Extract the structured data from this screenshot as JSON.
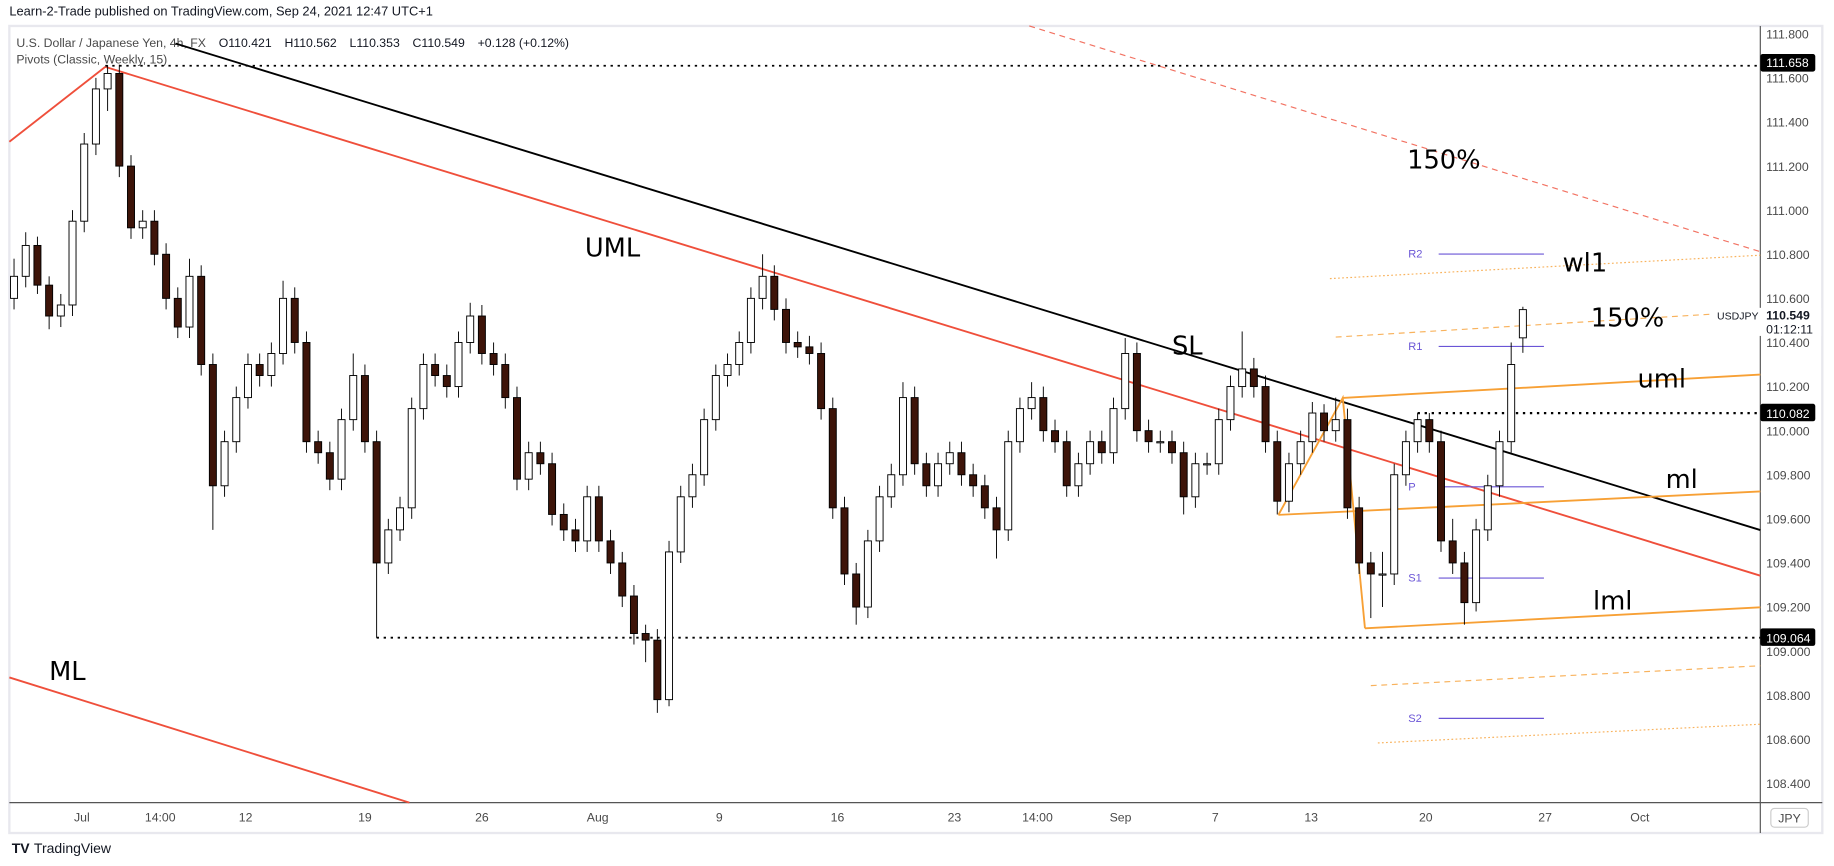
{
  "header": {
    "published": "Learn-2-Trade published on TradingView.com, Sep 24, 2021 12:47 UTC+1",
    "symbol_name": "U.S. Dollar / Japanese Yen, 4h, FX",
    "open": "O110.421",
    "high": "H110.562",
    "low": "L110.353",
    "close": "C110.549",
    "change": "+0.128 (+0.12%)",
    "indicator": "Pivots (Classic, Weekly, 15)"
  },
  "footer": {
    "logo_text": "TradingView"
  },
  "price_axis": {
    "currency": "JPY",
    "ticks": [
      "111.800",
      "111.600",
      "111.400",
      "111.200",
      "111.000",
      "110.800",
      "110.600",
      "110.400",
      "110.200",
      "110.000",
      "109.800",
      "109.600",
      "109.400",
      "109.200",
      "109.000",
      "108.800",
      "108.600",
      "108.400"
    ],
    "current_price": "110.549",
    "countdown": "01:12:11",
    "symbol_tag": "USDJPY",
    "level_labels": [
      "111.658",
      "110.082",
      "109.064"
    ]
  },
  "annotations": {
    "upper_150": "150%",
    "uml_big": "UML",
    "wl1": "wl1",
    "right_150": "150%",
    "sl": "SL",
    "uml": "uml",
    "ml": "ml",
    "lml": "lml",
    "ml_big": "ML"
  },
  "pivots": {
    "r2": "R2",
    "r1": "R1",
    "p": "P",
    "s1": "S1",
    "s2": "S2"
  },
  "colors": {
    "up_candle": "#ffffff",
    "down_candle": "#3d1409",
    "red_line": "#ef4f3b",
    "orange_line": "#f7a035",
    "pivot": "#6a55d6",
    "trend_line": "#000000"
  },
  "chart_data": {
    "type": "candlestick",
    "title": "U.S. Dollar / Japanese Yen, 4h, FX",
    "ylim": [
      108.3,
      111.9
    ],
    "grid": false,
    "x_tick_labels": [
      "Jul",
      "14:00",
      "12",
      "19",
      "26",
      "Aug",
      "9",
      "16",
      "23",
      "14:00",
      "Sep",
      "7",
      "13",
      "20",
      "27",
      "Oct"
    ],
    "horizontal_levels": [
      111.658,
      110.082,
      109.064
    ],
    "pivot_levels": {
      "R2": 110.8,
      "R1": 110.38,
      "P": 109.745,
      "S1": 109.33,
      "S2": 108.7
    },
    "candles": [
      [
        110.6,
        110.78,
        110.55,
        110.7
      ],
      [
        110.7,
        110.9,
        110.65,
        110.84
      ],
      [
        110.84,
        110.88,
        110.62,
        110.66
      ],
      [
        110.66,
        110.7,
        110.46,
        110.52
      ],
      [
        110.52,
        110.62,
        110.47,
        110.57
      ],
      [
        110.57,
        111.0,
        110.52,
        110.95
      ],
      [
        110.95,
        111.35,
        110.9,
        111.3
      ],
      [
        111.3,
        111.6,
        111.25,
        111.55
      ],
      [
        111.55,
        111.658,
        111.45,
        111.62
      ],
      [
        111.62,
        111.66,
        111.15,
        111.2
      ],
      [
        111.2,
        111.25,
        110.87,
        110.92
      ],
      [
        110.92,
        111.0,
        110.87,
        110.95
      ],
      [
        110.95,
        111.0,
        110.75,
        110.8
      ],
      [
        110.8,
        110.85,
        110.55,
        110.6
      ],
      [
        110.6,
        110.65,
        110.42,
        110.47
      ],
      [
        110.47,
        110.78,
        110.42,
        110.7
      ],
      [
        110.7,
        110.75,
        110.25,
        110.3
      ],
      [
        110.3,
        110.35,
        109.55,
        109.75
      ],
      [
        109.75,
        110.0,
        109.7,
        109.95
      ],
      [
        109.95,
        110.2,
        109.9,
        110.15
      ],
      [
        110.15,
        110.35,
        110.1,
        110.3
      ],
      [
        110.3,
        110.35,
        110.2,
        110.25
      ],
      [
        110.25,
        110.4,
        110.2,
        110.35
      ],
      [
        110.35,
        110.68,
        110.3,
        110.6
      ],
      [
        110.6,
        110.65,
        110.35,
        110.4
      ],
      [
        110.4,
        110.45,
        109.9,
        109.95
      ],
      [
        109.95,
        110.0,
        109.85,
        109.9
      ],
      [
        109.9,
        109.95,
        109.73,
        109.78
      ],
      [
        109.78,
        110.1,
        109.73,
        110.05
      ],
      [
        110.05,
        110.35,
        110.0,
        110.25
      ],
      [
        110.25,
        110.3,
        109.9,
        109.95
      ],
      [
        109.95,
        110.0,
        109.06,
        109.4
      ],
      [
        109.4,
        109.6,
        109.35,
        109.55
      ],
      [
        109.55,
        109.7,
        109.5,
        109.65
      ],
      [
        109.65,
        110.15,
        109.6,
        110.1
      ],
      [
        110.1,
        110.35,
        110.05,
        110.3
      ],
      [
        110.3,
        110.35,
        110.2,
        110.25
      ],
      [
        110.25,
        110.3,
        110.15,
        110.2
      ],
      [
        110.2,
        110.45,
        110.15,
        110.4
      ],
      [
        110.4,
        110.58,
        110.35,
        110.52
      ],
      [
        110.52,
        110.57,
        110.3,
        110.35
      ],
      [
        110.35,
        110.4,
        110.25,
        110.3
      ],
      [
        110.3,
        110.35,
        110.1,
        110.15
      ],
      [
        110.15,
        110.2,
        109.73,
        109.78
      ],
      [
        109.78,
        109.95,
        109.73,
        109.9
      ],
      [
        109.9,
        109.95,
        109.8,
        109.85
      ],
      [
        109.85,
        109.9,
        109.57,
        109.62
      ],
      [
        109.62,
        109.67,
        109.5,
        109.55
      ],
      [
        109.55,
        109.6,
        109.45,
        109.5
      ],
      [
        109.5,
        109.75,
        109.45,
        109.7
      ],
      [
        109.7,
        109.75,
        109.45,
        109.5
      ],
      [
        109.5,
        109.55,
        109.35,
        109.4
      ],
      [
        109.4,
        109.45,
        109.2,
        109.25
      ],
      [
        109.25,
        109.3,
        109.03,
        109.08
      ],
      [
        109.08,
        109.12,
        108.95,
        109.05
      ],
      [
        109.05,
        109.1,
        108.72,
        108.78
      ],
      [
        108.78,
        109.5,
        108.75,
        109.45
      ],
      [
        109.45,
        109.75,
        109.4,
        109.7
      ],
      [
        109.7,
        109.85,
        109.65,
        109.8
      ],
      [
        109.8,
        110.1,
        109.75,
        110.05
      ],
      [
        110.05,
        110.3,
        110.0,
        110.25
      ],
      [
        110.25,
        110.35,
        110.2,
        110.3
      ],
      [
        110.3,
        110.45,
        110.25,
        110.4
      ],
      [
        110.4,
        110.65,
        110.35,
        110.6
      ],
      [
        110.6,
        110.8,
        110.55,
        110.7
      ],
      [
        110.7,
        110.75,
        110.5,
        110.55
      ],
      [
        110.55,
        110.6,
        110.35,
        110.4
      ],
      [
        110.4,
        110.45,
        110.33,
        110.38
      ],
      [
        110.38,
        110.43,
        110.3,
        110.35
      ],
      [
        110.35,
        110.4,
        110.05,
        110.1
      ],
      [
        110.1,
        110.15,
        109.6,
        109.65
      ],
      [
        109.65,
        109.7,
        109.3,
        109.35
      ],
      [
        109.35,
        109.4,
        109.12,
        109.2
      ],
      [
        109.2,
        109.55,
        109.15,
        109.5
      ],
      [
        109.5,
        109.75,
        109.45,
        109.7
      ],
      [
        109.7,
        109.85,
        109.65,
        109.8
      ],
      [
        109.8,
        110.22,
        109.75,
        110.15
      ],
      [
        110.15,
        110.2,
        109.8,
        109.85
      ],
      [
        109.85,
        109.9,
        109.7,
        109.75
      ],
      [
        109.75,
        109.9,
        109.7,
        109.85
      ],
      [
        109.85,
        109.95,
        109.8,
        109.9
      ],
      [
        109.9,
        109.95,
        109.75,
        109.8
      ],
      [
        109.8,
        109.85,
        109.7,
        109.75
      ],
      [
        109.75,
        109.8,
        109.6,
        109.65
      ],
      [
        109.65,
        109.7,
        109.42,
        109.55
      ],
      [
        109.55,
        110.0,
        109.5,
        109.95
      ],
      [
        109.95,
        110.15,
        109.9,
        110.1
      ],
      [
        110.1,
        110.22,
        110.05,
        110.15
      ],
      [
        110.15,
        110.2,
        109.95,
        110.0
      ],
      [
        110.0,
        110.05,
        109.9,
        109.95
      ],
      [
        109.95,
        110.0,
        109.7,
        109.75
      ],
      [
        109.75,
        109.9,
        109.7,
        109.85
      ],
      [
        109.85,
        110.0,
        109.8,
        109.95
      ],
      [
        109.95,
        110.0,
        109.85,
        109.9
      ],
      [
        109.9,
        110.15,
        109.85,
        110.1
      ],
      [
        110.1,
        110.42,
        110.05,
        110.35
      ],
      [
        110.35,
        110.4,
        109.95,
        110.0
      ],
      [
        110.0,
        110.05,
        109.9,
        109.95
      ],
      [
        109.95,
        110.0,
        109.9,
        109.95
      ],
      [
        109.95,
        110.0,
        109.85,
        109.9
      ],
      [
        109.9,
        109.95,
        109.62,
        109.7
      ],
      [
        109.7,
        109.9,
        109.65,
        109.85
      ],
      [
        109.85,
        109.9,
        109.8,
        109.85
      ],
      [
        109.85,
        110.1,
        109.8,
        110.05
      ],
      [
        110.05,
        110.25,
        110.0,
        110.2
      ],
      [
        110.2,
        110.45,
        110.15,
        110.28
      ],
      [
        110.28,
        110.33,
        110.15,
        110.2
      ],
      [
        110.2,
        110.25,
        109.9,
        109.95
      ],
      [
        109.95,
        110.0,
        109.62,
        109.68
      ],
      [
        109.68,
        109.9,
        109.63,
        109.85
      ],
      [
        109.85,
        110.0,
        109.8,
        109.95
      ],
      [
        109.95,
        110.13,
        109.9,
        110.08
      ],
      [
        110.08,
        110.12,
        109.95,
        110.0
      ],
      [
        110.0,
        110.15,
        109.95,
        110.05
      ],
      [
        110.05,
        110.1,
        109.6,
        109.65
      ],
      [
        109.65,
        109.7,
        109.35,
        109.4
      ],
      [
        109.4,
        109.45,
        109.15,
        109.35
      ],
      [
        109.35,
        109.45,
        109.2,
        109.35
      ],
      [
        109.35,
        109.85,
        109.3,
        109.8
      ],
      [
        109.8,
        110.0,
        109.75,
        109.95
      ],
      [
        109.95,
        110.08,
        109.9,
        110.05
      ],
      [
        110.05,
        110.08,
        109.9,
        109.95
      ],
      [
        109.95,
        110.0,
        109.45,
        109.5
      ],
      [
        109.5,
        109.6,
        109.35,
        109.4
      ],
      [
        109.4,
        109.45,
        109.12,
        109.22
      ],
      [
        109.22,
        109.6,
        109.18,
        109.55
      ],
      [
        109.55,
        109.8,
        109.5,
        109.75
      ],
      [
        109.75,
        110.0,
        109.7,
        109.95
      ],
      [
        109.95,
        110.4,
        109.9,
        110.3
      ],
      [
        110.421,
        110.562,
        110.353,
        110.549
      ]
    ]
  }
}
